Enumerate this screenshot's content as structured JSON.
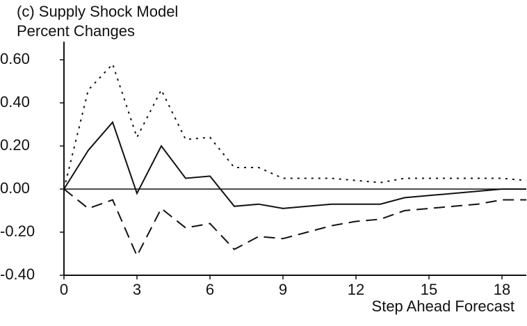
{
  "chart_data": {
    "type": "line",
    "title": "(c) Supply Shock Model",
    "ylabel": "Percent Changes",
    "xlabel": "Step Ahead Forecast",
    "x": [
      0,
      1,
      2,
      3,
      4,
      5,
      6,
      7,
      8,
      9,
      10,
      11,
      12,
      13,
      14,
      15,
      16,
      17,
      18,
      19
    ],
    "series": [
      {
        "color": "#111111",
        "dash": "solid",
        "values": [
          0,
          0.18,
          0.31,
          -0.02,
          0.2,
          0.05,
          0.06,
          -0.08,
          -0.07,
          -0.09,
          -0.08,
          -0.07,
          -0.07,
          -0.07,
          -0.04,
          -0.03,
          -0.02,
          -0.01,
          0,
          0
        ]
      },
      {
        "color": "#111111",
        "dash": "dotted",
        "values": [
          0,
          0.46,
          0.58,
          0.24,
          0.46,
          0.23,
          0.24,
          0.1,
          0.1,
          0.05,
          0.05,
          0.05,
          0.04,
          0.03,
          0.05,
          0.05,
          0.05,
          0.05,
          0.05,
          0.04
        ]
      },
      {
        "color": "#111111",
        "dash": "dashed",
        "values": [
          0,
          -0.09,
          -0.05,
          -0.31,
          -0.09,
          -0.18,
          -0.16,
          -0.28,
          -0.22,
          -0.23,
          -0.2,
          -0.17,
          -0.15,
          -0.14,
          -0.1,
          -0.09,
          -0.08,
          -0.07,
          -0.05,
          -0.05
        ]
      }
    ],
    "xlim": [
      0,
      19
    ],
    "xticks": [
      0,
      3,
      6,
      9,
      12,
      15,
      18
    ],
    "ylim": [
      -0.4,
      0.6
    ],
    "yticks": [
      {
        "value": 0.6,
        "label": "0.60"
      },
      {
        "value": 0.4,
        "label": "0.40"
      },
      {
        "value": 0.2,
        "label": "0.20"
      },
      {
        "value": 0,
        "label": "0.00"
      },
      {
        "value": -0.2,
        "label": "-0.20"
      },
      {
        "value": -0.4,
        "label": "-0.40"
      }
    ],
    "zero_line": true,
    "grid": false
  }
}
